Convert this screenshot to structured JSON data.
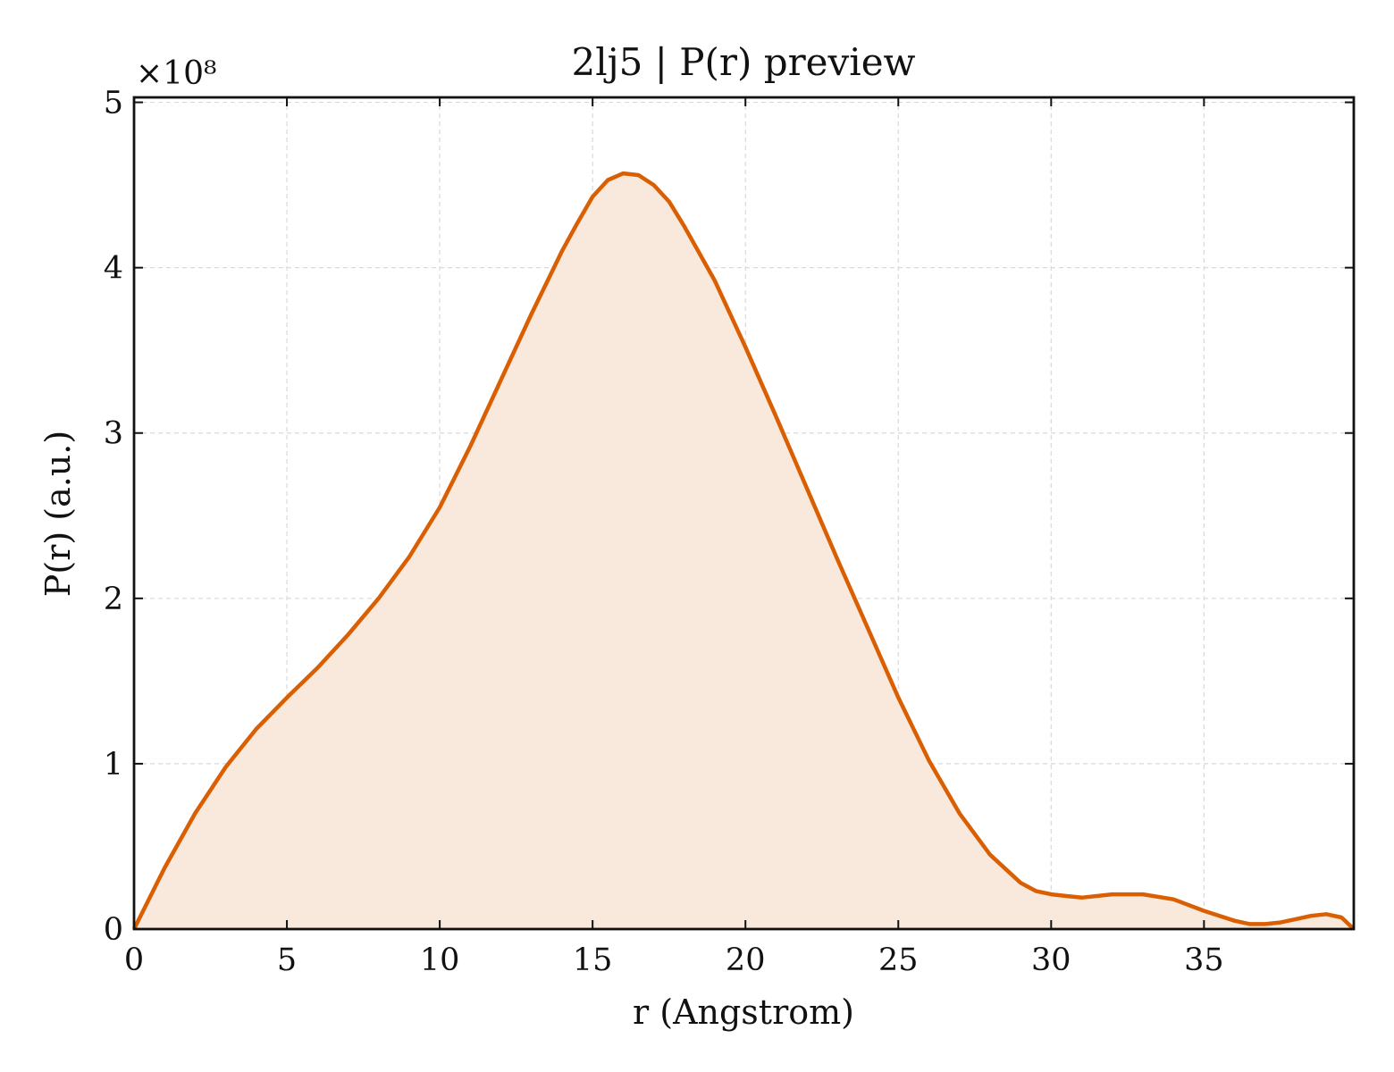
{
  "chart_data": {
    "type": "area",
    "title": "2lj5 | P(r) preview",
    "xlabel": "r (Angstrom)",
    "ylabel": "P(r) (a.u.)",
    "y_scale_label": "×10⁸",
    "y_multiplier": 100000000,
    "xlim": [
      0,
      39.9
    ],
    "ylim": [
      0,
      5.03
    ],
    "x_ticks": [
      0,
      5,
      10,
      15,
      20,
      25,
      30,
      35
    ],
    "x_tick_labels": [
      "0",
      "5",
      "10",
      "15",
      "20",
      "25",
      "30",
      "35"
    ],
    "y_ticks": [
      0,
      1,
      2,
      3,
      4,
      5
    ],
    "y_tick_labels": [
      "0",
      "1",
      "2",
      "3",
      "4",
      "5"
    ],
    "grid": true,
    "colors": {
      "line": "#d95f02",
      "fill": "#f9e9dd"
    },
    "series": [
      {
        "x": [
          0,
          1,
          2,
          3,
          4,
          5,
          6,
          7,
          8,
          9,
          10,
          11,
          12,
          13,
          14,
          14.5,
          15,
          15.5,
          16,
          16.5,
          17,
          17.5,
          18,
          19,
          20,
          21,
          22,
          23,
          24,
          25,
          26,
          27,
          28,
          29,
          29.5,
          30,
          30.5,
          31,
          32,
          33,
          34,
          35,
          36,
          36.5,
          37,
          37.5,
          38,
          38.5,
          39,
          39.5,
          39.9
        ],
        "y": [
          0,
          0.37,
          0.7,
          0.98,
          1.21,
          1.4,
          1.58,
          1.78,
          2.0,
          2.25,
          2.55,
          2.92,
          3.32,
          3.72,
          4.1,
          4.27,
          4.43,
          4.53,
          4.57,
          4.56,
          4.5,
          4.4,
          4.25,
          3.92,
          3.52,
          3.1,
          2.67,
          2.24,
          1.82,
          1.4,
          1.02,
          0.7,
          0.45,
          0.28,
          0.23,
          0.21,
          0.2,
          0.19,
          0.21,
          0.21,
          0.18,
          0.11,
          0.05,
          0.03,
          0.03,
          0.04,
          0.06,
          0.08,
          0.09,
          0.07,
          0
        ]
      }
    ]
  }
}
